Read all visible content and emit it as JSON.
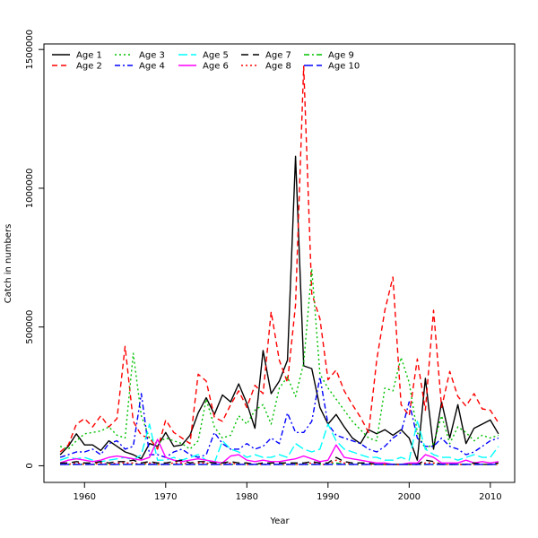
{
  "chart_data": {
    "type": "line",
    "title": "",
    "xlabel": "Year",
    "ylabel": "Catch in numbers",
    "xlim": [
      1955,
      2013
    ],
    "ylim": [
      -60000,
      1520000
    ],
    "xticks": [
      1960,
      1970,
      1980,
      1990,
      2000,
      2010
    ],
    "yticks": [
      0,
      500000,
      1000000,
      1500000
    ],
    "ytick_labels": [
      "0",
      "500000",
      "1000000",
      "1500000"
    ],
    "grid": false,
    "legend_position": "top-left",
    "x": [
      1957,
      1958,
      1959,
      1960,
      1961,
      1962,
      1963,
      1964,
      1965,
      1966,
      1967,
      1968,
      1969,
      1970,
      1971,
      1972,
      1973,
      1974,
      1975,
      1976,
      1977,
      1978,
      1979,
      1980,
      1981,
      1982,
      1983,
      1984,
      1985,
      1986,
      1987,
      1988,
      1989,
      1990,
      1991,
      1992,
      1993,
      1994,
      1995,
      1996,
      1997,
      1998,
      1999,
      2000,
      2001,
      2002,
      2003,
      2004,
      2005,
      2006,
      2007,
      2008,
      2009,
      2010,
      2011
    ],
    "series": [
      {
        "name": "Age 1",
        "color": "#000000",
        "dash": "solid",
        "values": [
          40000,
          70000,
          115000,
          75000,
          75000,
          55000,
          90000,
          70000,
          50000,
          40000,
          25000,
          80000,
          70000,
          120000,
          70000,
          75000,
          110000,
          190000,
          245000,
          185000,
          255000,
          230000,
          295000,
          225000,
          135000,
          415000,
          260000,
          305000,
          380000,
          1115000,
          360000,
          350000,
          210000,
          150000,
          185000,
          140000,
          100000,
          80000,
          130000,
          115000,
          130000,
          110000,
          130000,
          100000,
          20000,
          315000,
          60000,
          230000,
          100000,
          220000,
          80000,
          135000,
          150000,
          165000,
          115000
        ]
      },
      {
        "name": "Age 2",
        "color": "#ff0000",
        "dash": "6,4",
        "values": [
          50000,
          75000,
          150000,
          170000,
          140000,
          180000,
          140000,
          170000,
          430000,
          160000,
          110000,
          100000,
          60000,
          165000,
          120000,
          100000,
          80000,
          330000,
          305000,
          175000,
          160000,
          220000,
          270000,
          210000,
          290000,
          260000,
          555000,
          380000,
          300000,
          580000,
          1440000,
          620000,
          530000,
          310000,
          345000,
          270000,
          220000,
          175000,
          120000,
          380000,
          560000,
          680000,
          220000,
          180000,
          385000,
          200000,
          560000,
          210000,
          340000,
          250000,
          215000,
          260000,
          205000,
          200000,
          155000
        ]
      },
      {
        "name": "Age 3",
        "color": "#00c000",
        "dash": "2,3",
        "values": [
          70000,
          60000,
          90000,
          115000,
          120000,
          125000,
          140000,
          110000,
          100000,
          405000,
          180000,
          100000,
          80000,
          100000,
          90000,
          80000,
          60000,
          90000,
          240000,
          140000,
          100000,
          110000,
          180000,
          150000,
          200000,
          220000,
          150000,
          280000,
          320000,
          250000,
          370000,
          710000,
          330000,
          280000,
          240000,
          200000,
          160000,
          130000,
          100000,
          90000,
          280000,
          270000,
          390000,
          300000,
          120000,
          60000,
          80000,
          180000,
          80000,
          140000,
          120000,
          90000,
          110000,
          100000,
          110000
        ]
      },
      {
        "name": "Age 4",
        "color": "#0000ff",
        "dash": "6,3,2,3",
        "values": [
          30000,
          40000,
          50000,
          50000,
          60000,
          40000,
          80000,
          90000,
          60000,
          70000,
          260000,
          40000,
          40000,
          30000,
          50000,
          60000,
          40000,
          30000,
          40000,
          120000,
          80000,
          60000,
          60000,
          80000,
          60000,
          70000,
          100000,
          80000,
          190000,
          120000,
          120000,
          160000,
          320000,
          150000,
          110000,
          100000,
          90000,
          80000,
          60000,
          50000,
          70000,
          100000,
          120000,
          230000,
          100000,
          70000,
          70000,
          100000,
          70000,
          60000,
          40000,
          50000,
          70000,
          90000,
          100000
        ]
      },
      {
        "name": "Age 5",
        "color": "#00ffff",
        "dash": "10,4",
        "values": [
          20000,
          30000,
          25000,
          30000,
          20000,
          15000,
          20000,
          25000,
          30000,
          20000,
          40000,
          150000,
          20000,
          20000,
          30000,
          20000,
          30000,
          40000,
          20000,
          10000,
          90000,
          60000,
          50000,
          30000,
          40000,
          30000,
          30000,
          40000,
          30000,
          80000,
          60000,
          50000,
          60000,
          150000,
          90000,
          60000,
          50000,
          40000,
          30000,
          30000,
          20000,
          20000,
          30000,
          20000,
          160000,
          60000,
          40000,
          30000,
          30000,
          20000,
          30000,
          40000,
          30000,
          30000,
          70000
        ]
      },
      {
        "name": "Age 6",
        "color": "#ff00ff",
        "dash": "solid",
        "values": [
          10000,
          20000,
          25000,
          20000,
          15000,
          20000,
          30000,
          35000,
          30000,
          25000,
          20000,
          30000,
          95000,
          30000,
          20000,
          15000,
          20000,
          25000,
          20000,
          15000,
          10000,
          35000,
          40000,
          20000,
          15000,
          20000,
          15000,
          15000,
          20000,
          25000,
          35000,
          25000,
          15000,
          20000,
          75000,
          30000,
          25000,
          20000,
          15000,
          10000,
          10000,
          5000,
          5000,
          10000,
          10000,
          40000,
          30000,
          10000,
          10000,
          10000,
          20000,
          10000,
          15000,
          10000,
          15000
        ]
      },
      {
        "name": "Age 7",
        "color": "#000000",
        "dash": "8,5",
        "values": [
          10000,
          10000,
          15000,
          10000,
          10000,
          15000,
          10000,
          15000,
          15000,
          20000,
          10000,
          15000,
          10000,
          10000,
          15000,
          20000,
          10000,
          15000,
          15000,
          10000,
          10000,
          15000,
          10000,
          10000,
          5000,
          10000,
          10000,
          10000,
          10000,
          10000,
          10000,
          15000,
          10000,
          10000,
          30000,
          15000,
          10000,
          10000,
          10000,
          5000,
          5000,
          5000,
          5000,
          5000,
          5000,
          20000,
          15000,
          5000,
          5000,
          5000,
          5000,
          10000,
          5000,
          5000,
          10000
        ]
      },
      {
        "name": "Age 8",
        "color": "#ff0000",
        "dash": "2,3",
        "values": [
          5000,
          5000,
          10000,
          5000,
          5000,
          10000,
          5000,
          10000,
          10000,
          10000,
          5000,
          10000,
          5000,
          5000,
          10000,
          10000,
          5000,
          10000,
          10000,
          5000,
          5000,
          10000,
          5000,
          5000,
          5000,
          5000,
          5000,
          5000,
          5000,
          5000,
          5000,
          10000,
          5000,
          5000,
          20000,
          10000,
          5000,
          5000,
          5000,
          5000,
          5000,
          5000,
          5000,
          5000,
          5000,
          10000,
          10000,
          5000,
          5000,
          5000,
          5000,
          5000,
          5000,
          5000,
          5000
        ]
      },
      {
        "name": "Age 9",
        "color": "#00c000",
        "dash": "6,3,2,3",
        "values": [
          5000,
          5000,
          5000,
          5000,
          5000,
          5000,
          5000,
          5000,
          5000,
          5000,
          5000,
          5000,
          5000,
          5000,
          5000,
          5000,
          5000,
          5000,
          5000,
          5000,
          5000,
          5000,
          5000,
          5000,
          5000,
          5000,
          5000,
          5000,
          5000,
          5000,
          5000,
          5000,
          5000,
          5000,
          10000,
          5000,
          5000,
          5000,
          5000,
          5000,
          5000,
          5000,
          5000,
          5000,
          5000,
          5000,
          5000,
          5000,
          5000,
          5000,
          5000,
          5000,
          5000,
          5000,
          5000
        ]
      },
      {
        "name": "Age 10",
        "color": "#0000ff",
        "dash": "10,4",
        "values": [
          5000,
          5000,
          5000,
          5000,
          5000,
          5000,
          5000,
          5000,
          5000,
          5000,
          5000,
          5000,
          5000,
          5000,
          5000,
          5000,
          5000,
          5000,
          5000,
          5000,
          5000,
          5000,
          5000,
          5000,
          5000,
          5000,
          5000,
          5000,
          5000,
          5000,
          5000,
          5000,
          5000,
          5000,
          5000,
          5000,
          5000,
          5000,
          5000,
          5000,
          5000,
          5000,
          5000,
          5000,
          5000,
          5000,
          5000,
          5000,
          5000,
          5000,
          5000,
          5000,
          5000,
          5000,
          5000
        ]
      }
    ]
  }
}
